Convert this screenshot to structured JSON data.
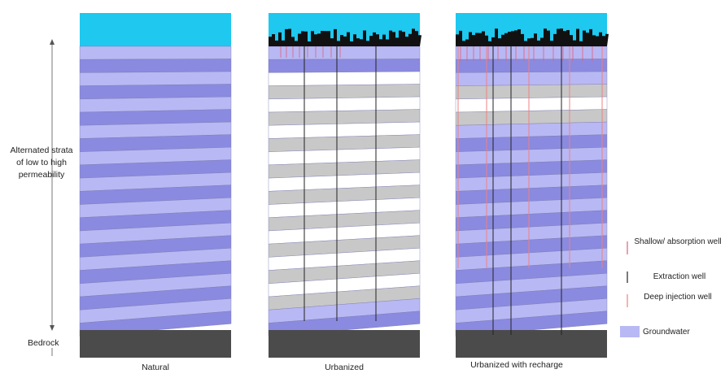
{
  "left_label": "Alternated strata of low to high permeability",
  "bedrock_label": "Bedrock",
  "panels": [
    {
      "label": "Natural"
    },
    {
      "label": "Urbanized"
    },
    {
      "label": "Urbanized with recharge"
    }
  ],
  "legend": [
    {
      "key": "shallow",
      "label": "Shallow/ absorption well",
      "color": "#e0607a"
    },
    {
      "key": "extraction",
      "label": "Extraction well",
      "color": "#222222"
    },
    {
      "key": "deep",
      "label": "Deep injection well",
      "color": "#f08080"
    },
    {
      "key": "groundwater",
      "label": "Groundwater",
      "color": "#b8b8f4"
    }
  ],
  "colors": {
    "sky": "#1ec8ef",
    "groundwater_light": "#b8b8f4",
    "groundwater_dark": "#8a8ae0",
    "dry_light": "#ffffff",
    "dry_dark": "#c8c8c8",
    "bedrock": "#4b4b4b",
    "city": "#111111"
  }
}
